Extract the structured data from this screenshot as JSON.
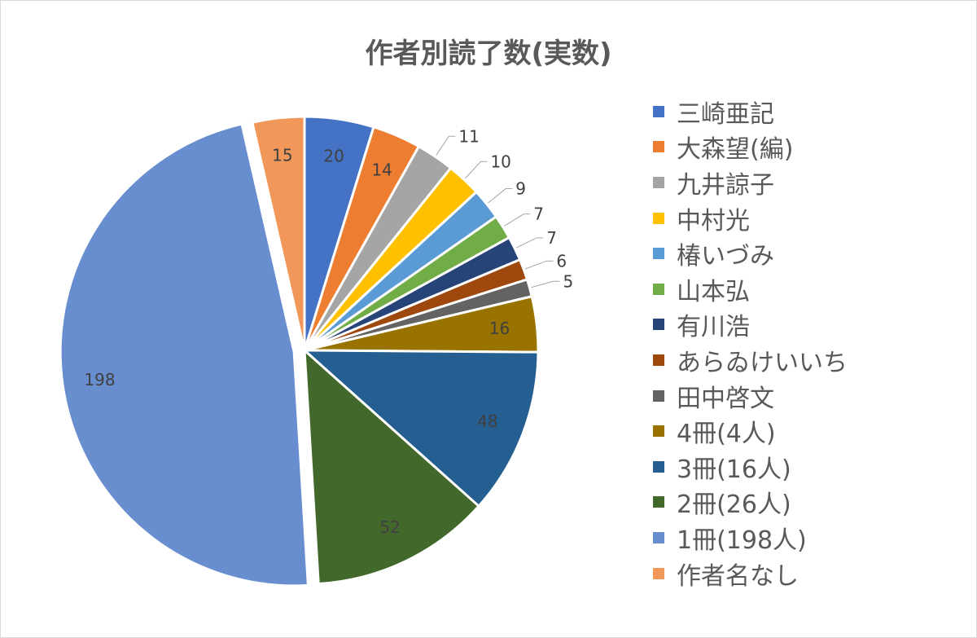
{
  "chart_data": {
    "type": "pie",
    "title": "作者別読了数(実数)",
    "legend_position": "right",
    "slices": [
      {
        "label": "三崎亜記",
        "value": 20,
        "color": "#4472C4"
      },
      {
        "label": "大森望(編)",
        "value": 14,
        "color": "#ED7D31"
      },
      {
        "label": "九井諒子",
        "value": 11,
        "color": "#A5A5A5"
      },
      {
        "label": "中村光",
        "value": 10,
        "color": "#FFC000"
      },
      {
        "label": "椿いづみ",
        "value": 9,
        "color": "#5B9BD5"
      },
      {
        "label": "山本弘",
        "value": 7,
        "color": "#70AD47"
      },
      {
        "label": "有川浩",
        "value": 7,
        "color": "#264478"
      },
      {
        "label": "あらゐけいいち",
        "value": 6,
        "color": "#9E480E"
      },
      {
        "label": "田中啓文",
        "value": 5,
        "color": "#636363"
      },
      {
        "label": "4冊(4人)",
        "value": 16,
        "color": "#997300"
      },
      {
        "label": "3冊(16人)",
        "value": 48,
        "color": "#255E91"
      },
      {
        "label": "2冊(26人)",
        "value": 52,
        "color": "#43682B"
      },
      {
        "label": "1冊(198人)",
        "value": 198,
        "color": "#698ED0"
      },
      {
        "label": "作者名なし",
        "value": 15,
        "color": "#F1975A"
      }
    ]
  }
}
